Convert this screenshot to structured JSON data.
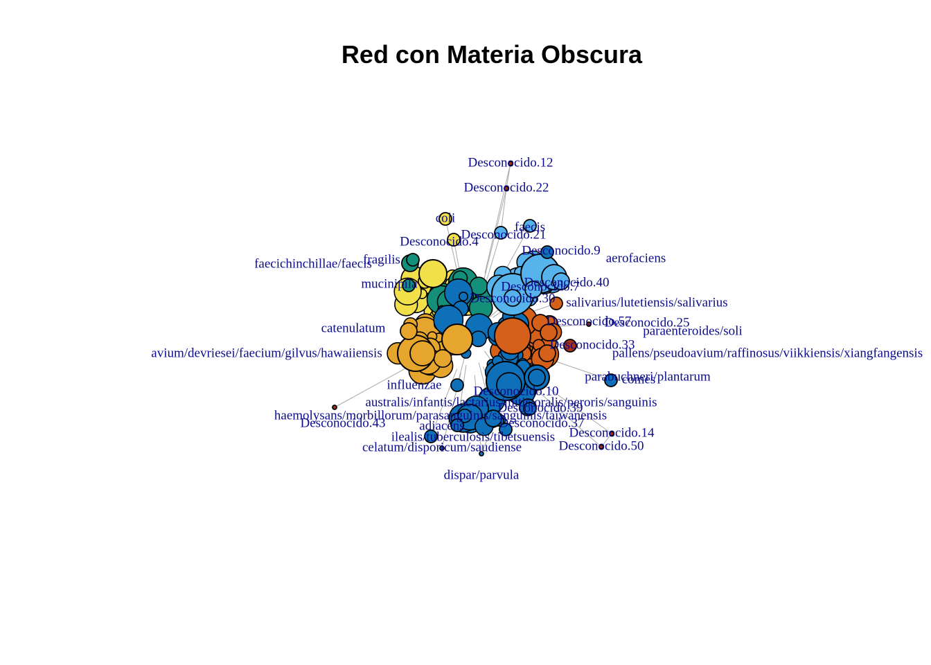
{
  "title": "Red con Materia Obscura",
  "colors": {
    "background": "#ffffff",
    "label": "#0b0b8c",
    "edge": "#a8a8a8",
    "stroke": "#000000",
    "yellow": "#f1e04a",
    "gold": "#e6a52c",
    "teal": "#14907a",
    "lightblue": "#56b3ec",
    "blue": "#0e70b8",
    "orange": "#d4601a",
    "darkred": "#a5321a"
  },
  "network": {
    "nodes": [
      {
        "label": "Desconocido.12",
        "color": "darkred",
        "size": 1
      },
      {
        "label": "Desconocido.22",
        "color": "darkred",
        "size": 1
      },
      {
        "label": "coli",
        "color": "yellow",
        "size": 2
      },
      {
        "label": "Desconocido.4",
        "color": "yellow",
        "size": 2
      },
      {
        "label": "Desconocido.21",
        "color": "lightblue",
        "size": 2
      },
      {
        "label": "faecis",
        "color": "lightblue",
        "size": 2
      },
      {
        "label": "Desconocido.9",
        "color": "blue",
        "size": 2
      },
      {
        "label": "aerofaciens",
        "color": "lightblue",
        "size": 4
      },
      {
        "label": "faecichinchillae/faecis",
        "color": "teal",
        "size": 3
      },
      {
        "label": "fragilis",
        "color": "teal",
        "size": 2
      },
      {
        "label": "Desconocido.40",
        "color": "lightblue",
        "size": 3
      },
      {
        "label": "Desconocido.7",
        "color": "lightblue",
        "size": 3
      },
      {
        "label": "Desconocido.30",
        "color": "lightblue",
        "size": 3
      },
      {
        "label": "mucinipila",
        "color": "teal",
        "size": 2
      },
      {
        "label": "salivarius/lutetiensis/salivarius",
        "color": "orange",
        "size": 2
      },
      {
        "label": "Desconocido.57",
        "color": "orange",
        "size": 3
      },
      {
        "label": "Desconocido.25",
        "color": "darkred",
        "size": 1
      },
      {
        "label": "catenulatum",
        "color": "gold",
        "size": 3
      },
      {
        "label": "paraenteroides/soli",
        "color": "orange",
        "size": 3
      },
      {
        "label": "avium/devriesei/faecium/gilvus/hawaiiensis",
        "color": "gold",
        "size": 4
      },
      {
        "label": "pallens/pseudoavium/raffinosus/viikkiensis/xiangfangensis",
        "color": "orange",
        "size": 3
      },
      {
        "label": "Desconocido.33",
        "color": "darkred",
        "size": 2
      },
      {
        "label": "comes",
        "color": "blue",
        "size": 2
      },
      {
        "label": "parabuchneri/plantarum",
        "color": "blue",
        "size": 3
      },
      {
        "label": "influenzae",
        "color": "blue",
        "size": 2
      },
      {
        "label": "Desconocido.10",
        "color": "blue",
        "size": 4
      },
      {
        "label": "australis/infantis/lactarius/mitis/oralis/peroris/sanguinis",
        "color": "blue",
        "size": 3
      },
      {
        "label": "Desconocido.39",
        "color": "blue",
        "size": 2
      },
      {
        "label": "haemolysans/morbillorum/parasanguinis/sanguinis/taiwanensis",
        "color": "blue",
        "size": 3
      },
      {
        "label": "Desconocido.43",
        "color": "darkred",
        "size": 1
      },
      {
        "label": "adiacens",
        "color": "blue",
        "size": 2
      },
      {
        "label": "Desconocido.37",
        "color": "blue",
        "size": 2
      },
      {
        "label": "ilealis/tuberculosis/tibetsuensis",
        "color": "blue",
        "size": 2
      },
      {
        "label": "celatum/disporicum/saudiense",
        "color": "blue",
        "size": 1
      },
      {
        "label": "Desconocido.14",
        "color": "darkred",
        "size": 1
      },
      {
        "label": "Desconocido.50",
        "color": "darkred",
        "size": 1
      },
      {
        "label": "dispar/parvula",
        "color": "blue",
        "size": 1
      }
    ]
  }
}
